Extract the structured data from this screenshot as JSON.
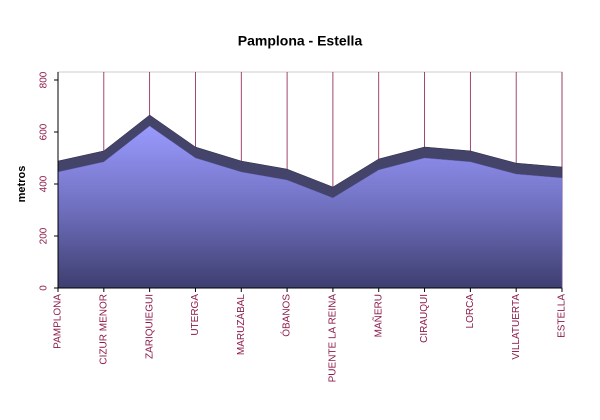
{
  "chart_data": {
    "type": "area",
    "title": "Pamplona - Estella",
    "y_label": "metros",
    "categories": [
      "PAMPLONA",
      "CIZUR MENOR",
      "ZARIQUIEGUI",
      "UTERGA",
      "MARUZÁBAL",
      "ÓBANOS",
      "PUENTE LA REINA",
      "MAÑERU",
      "CIRAUQUI",
      "LORCA",
      "VILLATUERTA",
      "ESTELLA"
    ],
    "values": [
      446,
      485,
      623,
      500,
      446,
      415,
      346,
      454,
      500,
      485,
      438,
      423
    ],
    "color": "#8c8cf0",
    "ylim": [
      0,
      800
    ],
    "yticks": [
      0,
      200,
      400,
      600,
      800
    ],
    "grid": true
  }
}
